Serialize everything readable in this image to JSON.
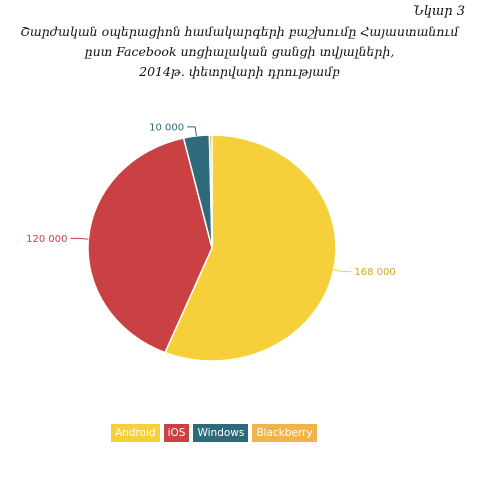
{
  "figure_label": "Նկար 3",
  "chart_data": {
    "type": "pie",
    "title": [
      "Շարժական օպերացիոն համակարգերի բաշխումը Հայաստանում",
      "ըստ Facebook սոցիալական ցանցի տվյալների,",
      "2014թ. փետրվարի դրությամբ"
    ],
    "slices": [
      {
        "label": "Android",
        "value": 168000,
        "value_label": "168 000",
        "color": "#f5d03a"
      },
      {
        "label": "iOS",
        "value": 120000,
        "value_label": "120 000",
        "color": "#c94143"
      },
      {
        "label": "Windows",
        "value": 10000,
        "value_label": "10 000",
        "color": "#2f6a7a"
      },
      {
        "label": "Blackberry",
        "value": 1000,
        "value_label": "",
        "color": "#f0b44a"
      }
    ],
    "legend_position": "bottom-center",
    "label_color": "#c94143"
  }
}
